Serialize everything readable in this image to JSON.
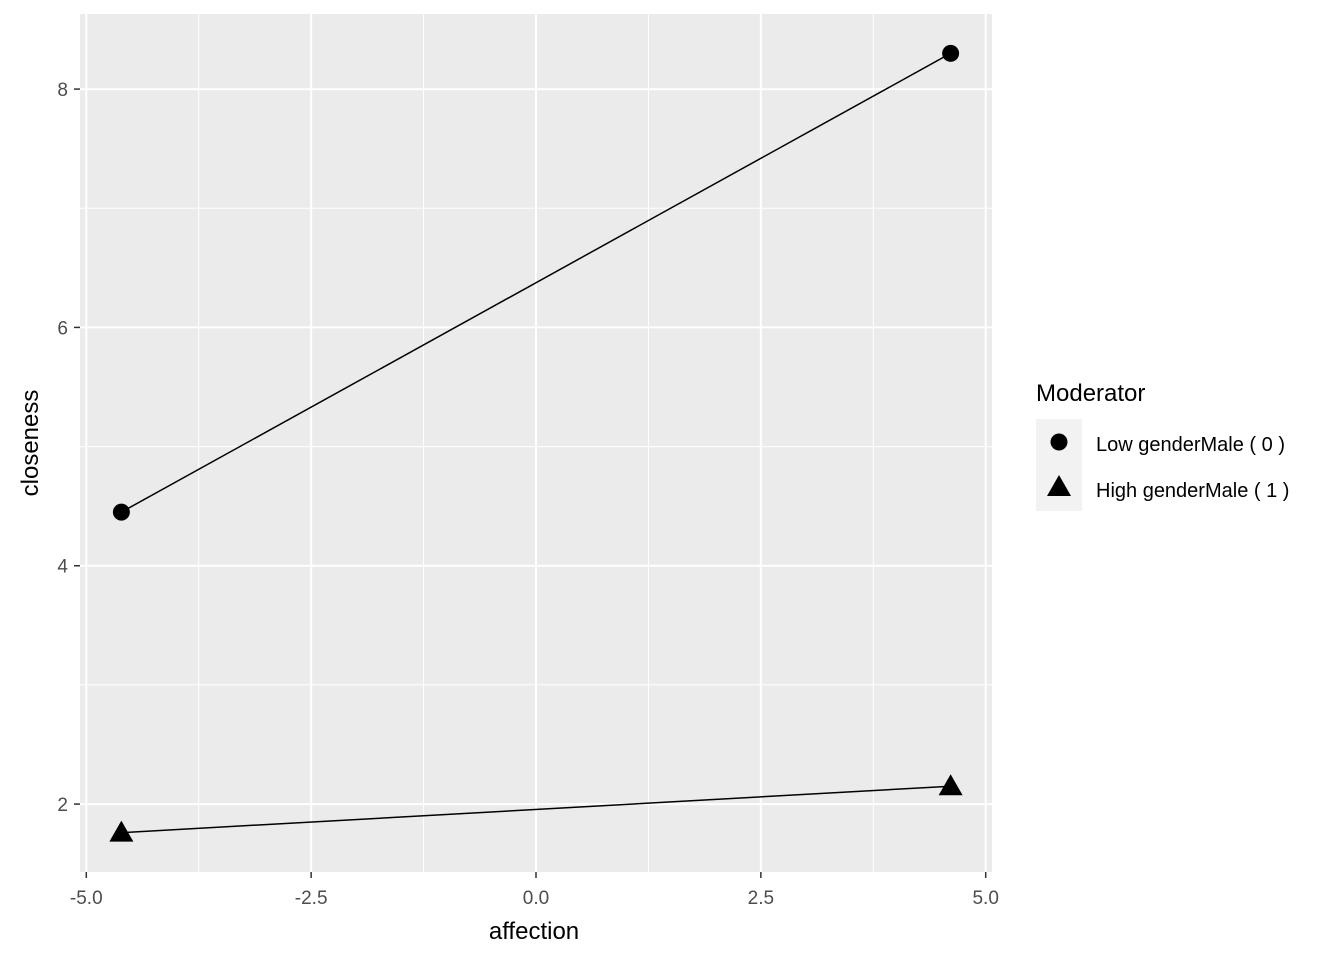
{
  "chart_data": {
    "type": "line",
    "title": "",
    "xlabel": "affection",
    "ylabel": "closeness",
    "xlim": [
      -5.07,
      5.07
    ],
    "ylim": [
      1.43,
      8.63
    ],
    "grid": true,
    "x_ticks": [
      -5.0,
      -2.5,
      0.0,
      2.5,
      5.0
    ],
    "x_tick_labels": [
      "-5.0",
      "-2.5",
      "0.0",
      "2.5",
      "5.0"
    ],
    "y_ticks": [
      2,
      4,
      6,
      8
    ],
    "y_tick_labels": [
      "2",
      "4",
      "6",
      "8"
    ],
    "legend": {
      "title": "Moderator",
      "placement": "right",
      "entries": [
        "Low genderMale ( 0 )",
        "High genderMale ( 1 )"
      ]
    },
    "series": [
      {
        "name": "Low genderMale ( 0 )",
        "marker": "circle",
        "x": [
          -4.61,
          4.61
        ],
        "y": [
          4.45,
          8.3
        ]
      },
      {
        "name": "High genderMale ( 1 )",
        "marker": "triangle",
        "x": [
          -4.61,
          4.61
        ],
        "y": [
          1.76,
          2.15
        ]
      }
    ],
    "colors": {
      "panel": "#ebebeb",
      "grid": "#ffffff",
      "mark": "#000000",
      "axis_text": "#4d4d4d"
    }
  }
}
